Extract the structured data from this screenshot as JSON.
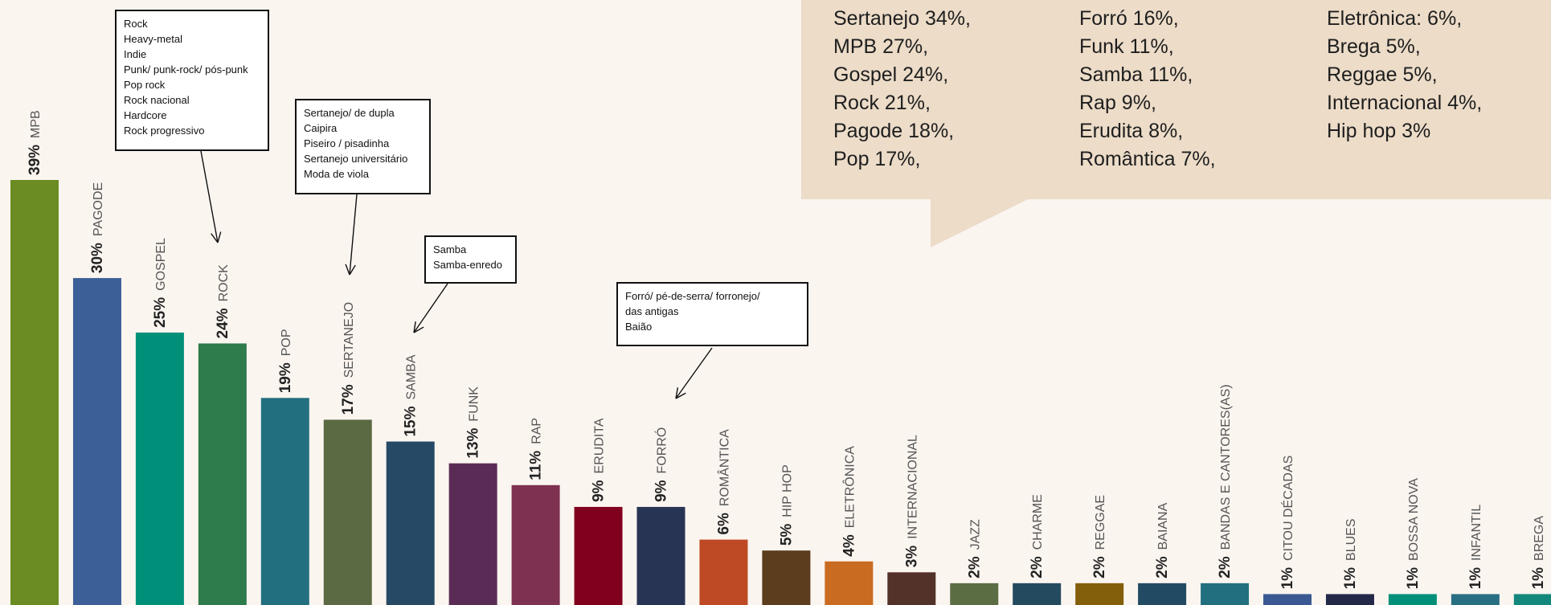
{
  "chart_data": {
    "type": "bar",
    "categories": [
      "MPB",
      "PAGODE",
      "GOSPEL",
      "ROCK",
      "POP",
      "SERTANEJO",
      "SAMBA",
      "FUNK",
      "RAP",
      "ERUDITA",
      "FORRÓ",
      "ROMÂNTICA",
      "HIP HOP",
      "ELETRÔNICA",
      "INTERNACIONAL",
      "JAZZ",
      "CHARME",
      "REGGAE",
      "BAIANA",
      "BANDAS E CANTORES(AS)",
      "CITOU DÉCADAS",
      "BLUES",
      "BOSSA NOVA",
      "INFANTIL",
      "BREGA"
    ],
    "values": [
      39,
      30,
      25,
      24,
      19,
      17,
      15,
      13,
      11,
      9,
      9,
      6,
      5,
      4,
      3,
      2,
      2,
      2,
      2,
      2,
      1,
      1,
      1,
      1,
      1
    ],
    "labels": [
      "39%",
      "30%",
      "25%",
      "24%",
      "19%",
      "17%",
      "15%",
      "13%",
      "11%",
      "9%",
      "9%",
      "6%",
      "5%",
      "4%",
      "3%",
      "2%",
      "2%",
      "2%",
      "2%",
      "2%",
      "1%",
      "1%",
      "1%",
      "1%",
      "1%"
    ],
    "colors": [
      "#6a8c23",
      "#3b5f96",
      "#00907a",
      "#2e7b4b",
      "#226f80",
      "#5b6a42",
      "#264a66",
      "#5a2c55",
      "#7e3150",
      "#80001e",
      "#283453",
      "#bd4a24",
      "#5c3e1f",
      "#c96c22",
      "#53322a",
      "#5b6d43",
      "#234a5f",
      "#845f0b",
      "#224a63",
      "#226f80",
      "#3a5993",
      "#24294a",
      "#00907a",
      "#286f83",
      "#14877c"
    ],
    "title": "",
    "xlabel": "",
    "ylabel": "",
    "ylim": [
      0,
      39
    ],
    "grid": false,
    "legend": "none"
  },
  "speech_bubble": {
    "columns": [
      [
        "Sertanejo 34%,",
        "MPB 27%,",
        "Gospel 24%,",
        "Rock 21%,",
        "Pagode 18%,",
        "Pop 17%,"
      ],
      [
        "Forró 16%,",
        "Funk 11%,",
        "Samba 11%,",
        "Rap 9%,",
        "Erudita 8%,",
        "Romântica 7%,"
      ],
      [
        "Eletrônica: 6%,",
        "Brega 5%,",
        "Reggae 5%,",
        "Internacional 4%,",
        "Hip hop 3%"
      ]
    ]
  },
  "callouts": [
    {
      "id": "rock",
      "lines": [
        "Rock",
        "Heavy-metal",
        "Indie",
        "Punk/ punk-rock/ pós-punk",
        "Pop rock",
        "Rock nacional",
        "Hardcore",
        "Rock progressivo"
      ]
    },
    {
      "id": "sertanejo",
      "lines": [
        "Sertanejo/ de dupla",
        "Caipira",
        "Piseiro / pisadinha",
        "Sertanejo universitário",
        "Moda de viola"
      ]
    },
    {
      "id": "samba",
      "lines": [
        "Samba",
        "Samba-enredo"
      ]
    },
    {
      "id": "forro",
      "lines": [
        "Forró/ pé-de-serra/ forronejo/",
        "das antigas",
        "Baião"
      ]
    }
  ]
}
